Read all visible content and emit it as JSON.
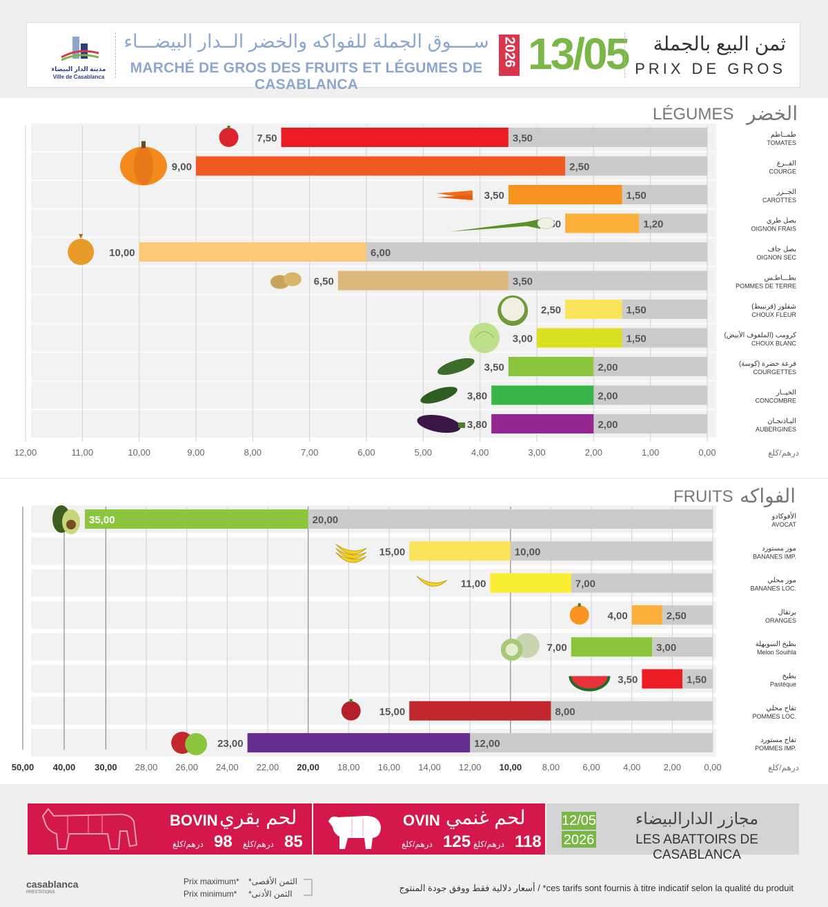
{
  "header": {
    "logo_ar": "مدينة الدار البيضاء",
    "logo_fr": "Ville de Casablanca",
    "market_ar": "ســــوق الجملة للفواكه والخضر الــدار البيضـــاء",
    "market_fr": "MARCHÉ DE GROS DES FRUITS ET LÉGUMES DE CASABLANCA",
    "year": "2026",
    "date": "13/05",
    "title_ar": "ثمن البيع بالجملة",
    "title_fr": "PRIX DE GROS"
  },
  "chart_data": [
    {
      "type": "bar",
      "orientation": "horizontal-range",
      "title": "LÉGUMES",
      "title_ar": "الخضر",
      "unit": "درهم/كلغ",
      "xlim": [
        0,
        12
      ],
      "ticks": [
        "0,00",
        "1,00",
        "2,00",
        "3,00",
        "4,00",
        "5,00",
        "6,00",
        "7,00",
        "8,00",
        "9,00",
        "10,00",
        "11,00",
        "12,00"
      ],
      "items": [
        {
          "ar": "طمــاطم",
          "fr": "TOMATES",
          "max": 7.5,
          "min": 3.5,
          "max_label": "7,50",
          "min_label": "3,50",
          "color": "#ec1c24",
          "icon": "tomato-icon"
        },
        {
          "ar": "القــرع",
          "fr": "COURGE",
          "max": 9.0,
          "min": 2.5,
          "max_label": "9,00",
          "min_label": "2,50",
          "color": "#f15a24",
          "icon": "pumpkin-icon"
        },
        {
          "ar": "الجــزر",
          "fr": "CAROTTES",
          "max": 3.5,
          "min": 1.5,
          "max_label": "3,50",
          "min_label": "1,50",
          "color": "#f7931e",
          "icon": "carrot-icon"
        },
        {
          "ar": "بصل طري",
          "fr": "OIGNON FRAIS",
          "max": 2.5,
          "min": 1.2,
          "max_label": "2,50",
          "min_label": "1,20",
          "color": "#fbb03b",
          "icon": "spring-onion-icon"
        },
        {
          "ar": "بصل جاف",
          "fr": "OIGNON SEC",
          "max": 10.0,
          "min": 6.0,
          "max_label": "10,00",
          "min_label": "6,00",
          "color": "#fcc976",
          "icon": "onion-icon"
        },
        {
          "ar": "بطـــاطـس",
          "fr": "POMMES DE TERRE",
          "max": 6.5,
          "min": 3.5,
          "max_label": "6,50",
          "min_label": "3,50",
          "color": "#ddb87e",
          "icon": "potato-icon"
        },
        {
          "ar": "شفلور (قرنبيط)",
          "fr": "CHOUX FLEUR",
          "max": 2.5,
          "min": 1.5,
          "max_label": "2,50",
          "min_label": "1,50",
          "color": "#fbe35a",
          "icon": "cauliflower-icon"
        },
        {
          "ar": "كرومب (الملفوف الأبيض)",
          "fr": "CHOUX BLANC",
          "max": 3.0,
          "min": 1.5,
          "max_label": "3,00",
          "min_label": "1,50",
          "color": "#d9e021",
          "icon": "cabbage-icon"
        },
        {
          "ar": "قرعة خضرة (كوسة)",
          "fr": "COURGETTES",
          "max": 3.5,
          "min": 2.0,
          "max_label": "3,50",
          "min_label": "2,00",
          "color": "#8cc63f",
          "icon": "zucchini-icon"
        },
        {
          "ar": "الخيــار",
          "fr": "CONCOMBRE",
          "max": 3.8,
          "min": 2.0,
          "max_label": "3,80",
          "min_label": "2,00",
          "color": "#39b54a",
          "icon": "cucumber-icon"
        },
        {
          "ar": "البـاذنجـان",
          "fr": "AUBERGINES",
          "max": 3.8,
          "min": 2.0,
          "max_label": "3,80",
          "min_label": "2,00",
          "color": "#93278f",
          "icon": "eggplant-icon"
        }
      ]
    },
    {
      "type": "bar",
      "orientation": "horizontal-range",
      "title": "FRUITS",
      "title_ar": "الفواكه",
      "unit": "درهم/كلغ",
      "scale": "piecewise",
      "ticks": [
        "0,00",
        "2,00",
        "4,00",
        "6,00",
        "8,00",
        "10,00",
        "12,00",
        "14,00",
        "16,00",
        "18,00",
        "20,00",
        "22,00",
        "24,00",
        "26,00",
        "28,00",
        "30,00",
        "40,00",
        "50,00"
      ],
      "bold_ticks": [
        "10,00",
        "20,00",
        "30,00",
        "40,00",
        "50,00"
      ],
      "items": [
        {
          "ar": "الأفوكادو",
          "fr": "AVOCAT",
          "max": 35.0,
          "min": 20.0,
          "max_label": "35,00",
          "min_label": "20,00",
          "color": "#8cc63f",
          "icon": "avocado-icon"
        },
        {
          "ar": "موز مستورد",
          "fr": "BANANES IMP.",
          "max": 15.0,
          "min": 10.0,
          "max_label": "15,00",
          "min_label": "10,00",
          "color": "#fbe35a",
          "icon": "banana-bunch-icon"
        },
        {
          "ar": "موز محلي",
          "fr": "BANANES LOC.",
          "max": 11.0,
          "min": 7.0,
          "max_label": "11,00",
          "min_label": "7,00",
          "color": "#f9ed32",
          "icon": "banana-icon"
        },
        {
          "ar": "برتقال",
          "fr": "ORANGES",
          "max": 4.0,
          "min": 2.5,
          "max_label": "4,00",
          "min_label": "2,50",
          "color": "#fbb03b",
          "icon": "orange-icon"
        },
        {
          "ar": "بطيخ السويهلة",
          "fr": "Melon Souihla",
          "max": 7.0,
          "min": 3.0,
          "max_label": "7,00",
          "min_label": "3,00",
          "color": "#8cc63f",
          "icon": "melon-icon"
        },
        {
          "ar": "بطيخ",
          "fr": "Pastèque",
          "max": 3.5,
          "min": 1.5,
          "max_label": "3,50",
          "min_label": "1,50",
          "color": "#ec1c24",
          "icon": "watermelon-icon"
        },
        {
          "ar": "تفاح محلي",
          "fr": "POMMES LOC.",
          "max": 15.0,
          "min": 8.0,
          "max_label": "15,00",
          "min_label": "8,00",
          "color": "#c1272d",
          "icon": "apple-icon"
        },
        {
          "ar": "تفاح مستورد",
          "fr": "POMMES IMP.",
          "max": 23.0,
          "min": 12.0,
          "max_label": "23,00",
          "min_label": "12,00",
          "color": "#662d91",
          "icon": "apples-icon"
        }
      ]
    }
  ],
  "meat": {
    "bovin": {
      "fr": "BOVIN",
      "ar": "لحم بقري",
      "max": "98",
      "min": "85",
      "unit": "درهم/كلغ"
    },
    "ovin": {
      "fr": "OVIN",
      "ar": "لحم غنمي",
      "max": "125",
      "min": "118",
      "unit": "درهم/كلغ"
    },
    "abattoirs": {
      "date": "12/05",
      "year": "2026",
      "ar": "مجازر الدارالبيضاء",
      "fr": "LES ABATTOIRS DE CASABLANCA"
    }
  },
  "footer": {
    "logo": "casablanca",
    "logo_sub": "PRESTATIONS",
    "prix_max": "Prix maximum*",
    "prix_min": "Prix minimum*",
    "max_ar": "*الثمن الأقصى",
    "min_ar": "*الثمن الأدنى",
    "note": "أسعار دلالية فقط ووفق جودة المنتوج  /  *ces tarifs sont fournis à titre indicatif selon la qualité du produit"
  }
}
